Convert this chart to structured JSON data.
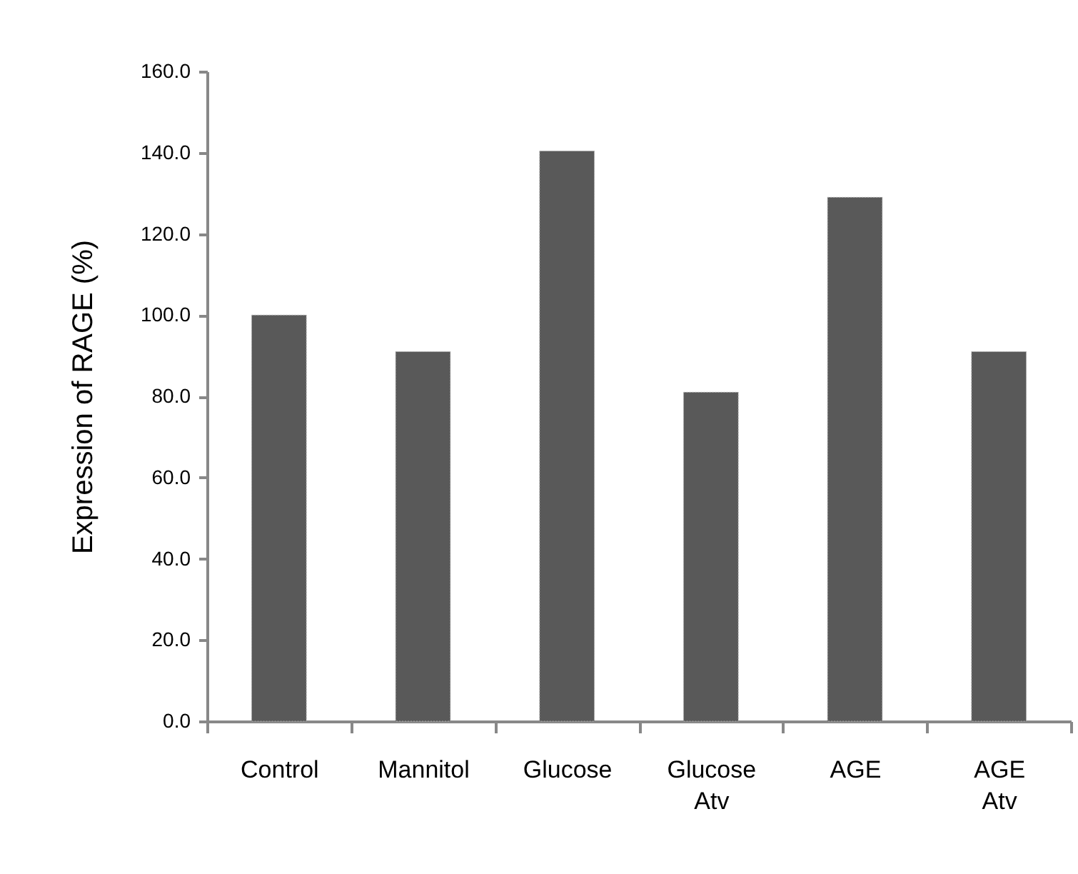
{
  "chart_data": {
    "type": "bar",
    "ylabel": "Expression of RAGE (%)",
    "categories": [
      "Control",
      "Mannitol",
      "Glucose",
      "Glucose Atv",
      "AGE",
      "AGE Atv"
    ],
    "values": [
      100,
      91,
      140.4,
      81,
      129,
      91
    ],
    "color": "#595959",
    "ylim": [
      0,
      160
    ],
    "yticks": [
      {
        "value": 0,
        "label": "0.0"
      },
      {
        "value": 20,
        "label": "20.0"
      },
      {
        "value": 40,
        "label": "40.0"
      },
      {
        "value": 60,
        "label": "60.0"
      },
      {
        "value": 80,
        "label": "80.0"
      },
      {
        "value": 100,
        "label": "100.0"
      },
      {
        "value": 120,
        "label": "120.0"
      },
      {
        "value": 140,
        "label": "140.0"
      },
      {
        "value": 160,
        "label": "160.0"
      }
    ],
    "grid": false
  }
}
